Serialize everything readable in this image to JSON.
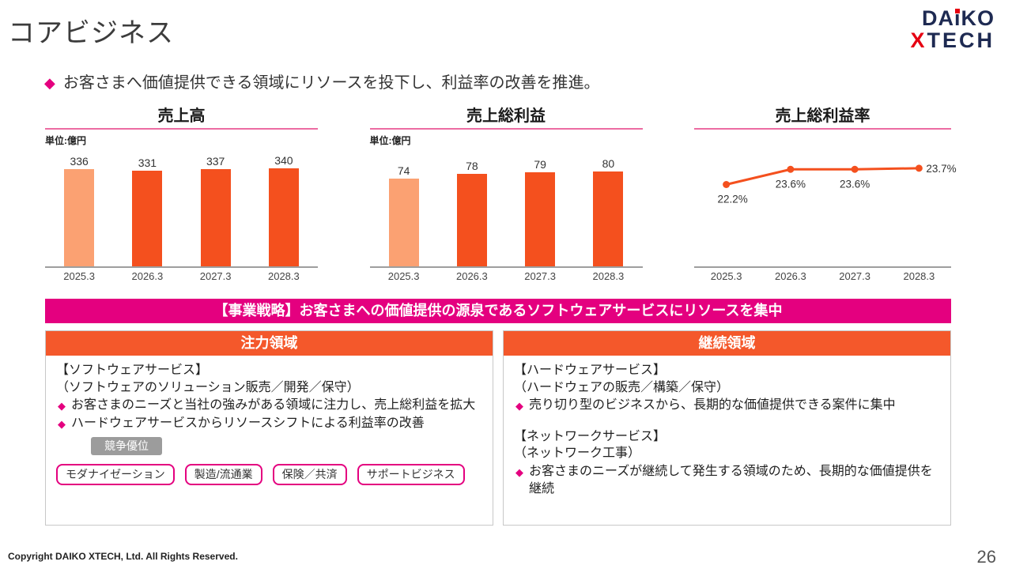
{
  "slide": {
    "title": "コアビジネス",
    "diamond": "◆",
    "lead": "お客さまへ価値提供できる領域にリソースを投下し、利益率の改善を推進。",
    "page_number": "26",
    "copyright": "Copyright DAIKO XTECH, Ltd. All Rights Reserved."
  },
  "logo": {
    "line1_left": "DA",
    "line1_i": "i",
    "line1_right": "KO",
    "line2_x": "X",
    "line2_rest": "TECH"
  },
  "colors": {
    "accent_pink": "#e4007f",
    "bar_orange": "#f4501e",
    "bar_orange_light": "#fba172",
    "panel_header_orange": "#f4582b",
    "logo_navy": "#1e2a52",
    "logo_red": "#e60012",
    "badge_gray": "#9c9c9c"
  },
  "chart_data": [
    {
      "type": "bar",
      "title": "売上高",
      "unit_label": "単位:億円",
      "categories": [
        "2025.3",
        "2026.3",
        "2027.3",
        "2028.3"
      ],
      "values": [
        336,
        331,
        337,
        340
      ],
      "ylim": [
        0,
        350
      ],
      "bar_colors": [
        "#fba172",
        "#f4501e",
        "#f4501e",
        "#f4501e"
      ]
    },
    {
      "type": "bar",
      "title": "売上総利益",
      "unit_label": "単位:億円",
      "categories": [
        "2025.3",
        "2026.3",
        "2027.3",
        "2028.3"
      ],
      "values": [
        74,
        78,
        79,
        80
      ],
      "ylim": [
        0,
        85
      ],
      "bar_colors": [
        "#fba172",
        "#f4501e",
        "#f4501e",
        "#f4501e"
      ]
    },
    {
      "type": "line",
      "title": "売上総利益率",
      "categories": [
        "2025.3",
        "2026.3",
        "2027.3",
        "2028.3"
      ],
      "values": [
        22.2,
        23.6,
        23.6,
        23.7
      ],
      "point_labels": [
        "22.2%",
        "23.6%",
        "23.6%",
        "23.7%"
      ],
      "ylim": [
        17,
        25
      ],
      "line_color": "#f4501e"
    }
  ],
  "strategy_banner": "【事業戦略】お客さまへの価値提供の源泉であるソフトウェアサービスにリソースを集中",
  "focus_panel": {
    "header": "注力領域",
    "heading": "【ソフトウェアサービス】",
    "subheading": "（ソフトウェアのソリューション販売／開発／保守）",
    "bullet1": "お客さまのニーズと当社の強みがある領域に注力し、売上総利益を拡大",
    "bullet2": "ハードウェアサービスからリソースシフトによる利益率の改善",
    "badge": "競争優位",
    "chips": [
      "モダナイゼーション",
      "製造/流通業",
      "保険／共済",
      "サポートビジネス"
    ]
  },
  "continue_panel": {
    "header": "継続領域",
    "heading1": "【ハードウェアサービス】",
    "subheading1": "（ハードウェアの販売／構築／保守）",
    "bullet1": "売り切り型のビジネスから、長期的な価値提供できる案件に集中",
    "heading2": "【ネットワークサービス】",
    "subheading2": "（ネットワーク工事）",
    "bullet2": "お客さまのニーズが継続して発生する領域のため、長期的な価値提供を継続"
  }
}
